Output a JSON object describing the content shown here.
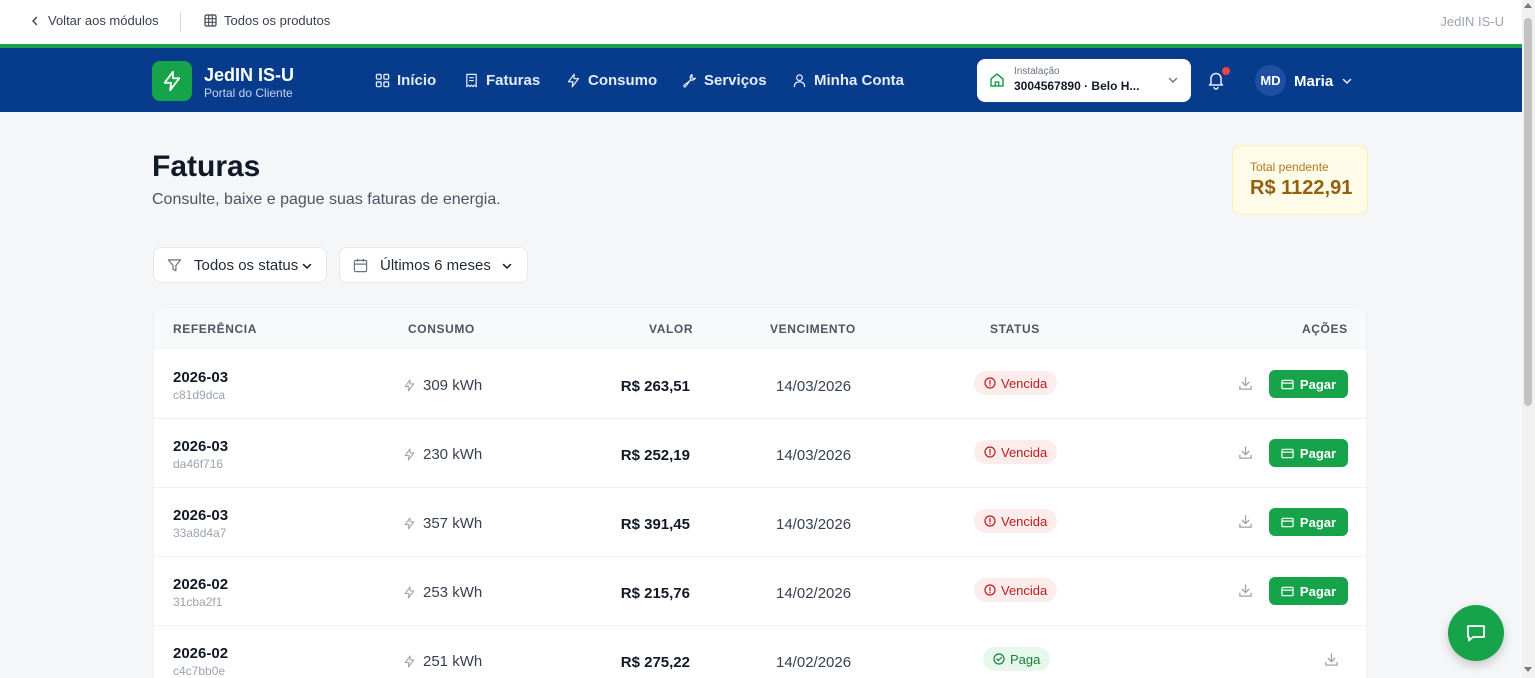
{
  "utilbar": {
    "back_label": "Voltar aos módulos",
    "products_label": "Todos os produtos",
    "brand": "JedIN IS-U"
  },
  "nav": {
    "logo_title": "JedIN IS-U",
    "logo_subtitle": "Portal do Cliente",
    "items": [
      {
        "label": "Início",
        "icon": "grid-icon"
      },
      {
        "label": "Faturas",
        "icon": "receipt-icon"
      },
      {
        "label": "Consumo",
        "icon": "bolt-icon"
      },
      {
        "label": "Serviços",
        "icon": "wrench-icon"
      },
      {
        "label": "Minha Conta",
        "icon": "user-icon"
      }
    ],
    "installation_label": "Instalação",
    "installation_value": "3004567890 · Belo H...",
    "user_initials": "MD",
    "user_name": "Maria"
  },
  "page": {
    "title": "Faturas",
    "subtitle": "Consulte, baixe e pague suas faturas de energia.",
    "pending_label": "Total pendente",
    "pending_value": "R$ 1122,91"
  },
  "filters": {
    "status": "Todos os status",
    "period": "Últimos 6 meses"
  },
  "table": {
    "headers": {
      "ref": "REFERÊNCIA",
      "consumo": "CONSUMO",
      "valor": "VALOR",
      "vencimento": "VENCIMENTO",
      "status": "STATUS",
      "acoes": "AÇÕES"
    },
    "pay_label": "Pagar",
    "rows": [
      {
        "ref": "2026-03",
        "id": "c81d9dca",
        "consumo": "309 kWh",
        "valor": "R$ 263,51",
        "vencimento": "14/03/2026",
        "status": "Vencida"
      },
      {
        "ref": "2026-03",
        "id": "da46f716",
        "consumo": "230 kWh",
        "valor": "R$ 252,19",
        "vencimento": "14/03/2026",
        "status": "Vencida"
      },
      {
        "ref": "2026-03",
        "id": "33a8d4a7",
        "consumo": "357 kWh",
        "valor": "R$ 391,45",
        "vencimento": "14/03/2026",
        "status": "Vencida"
      },
      {
        "ref": "2026-02",
        "id": "31cba2f1",
        "consumo": "253 kWh",
        "valor": "R$ 215,76",
        "vencimento": "14/02/2026",
        "status": "Vencida"
      },
      {
        "ref": "2026-02",
        "id": "c4c7bb0e",
        "consumo": "251 kWh",
        "valor": "R$ 275,22",
        "vencimento": "14/02/2026",
        "status": "Paga"
      }
    ]
  },
  "colors": {
    "nav_bg": "#073b8c",
    "accent_green": "#16a34a",
    "overdue_red": "#b91c1c",
    "paid_green": "#15803d",
    "pending_gold": "#92610e"
  }
}
